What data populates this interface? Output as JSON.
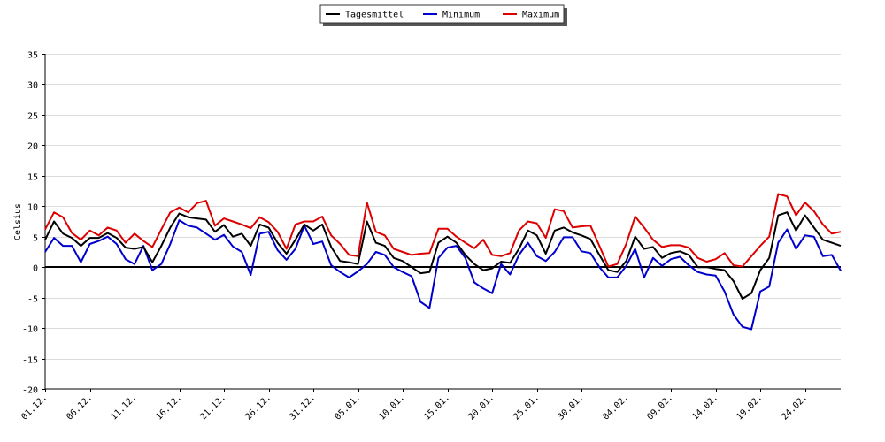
{
  "chart_data": {
    "type": "line",
    "ylabel": "Celsius",
    "xlabel": "",
    "ylim": [
      -20,
      35
    ],
    "yticks": [
      -20,
      -15,
      -10,
      -5,
      0,
      5,
      10,
      15,
      20,
      25,
      30,
      35
    ],
    "grid": "horizontal",
    "legend_position": "top-center",
    "xtick_labels": [
      "01.12.",
      "06.12.",
      "11.12.",
      "16.12.",
      "21.12.",
      "26.12.",
      "31.12.",
      "05.01.",
      "10.01.",
      "15.01.",
      "20.01.",
      "25.01.",
      "30.01.",
      "04.02.",
      "09.02.",
      "14.02.",
      "19.02.",
      "24.02."
    ],
    "x_start": "01.12.",
    "x_interval_days": 1,
    "series": [
      {
        "name": "Tagesmittel",
        "color": "#000000",
        "values": [
          4.5,
          7.5,
          5.5,
          4.8,
          3.5,
          4.8,
          4.8,
          5.6,
          4.8,
          3.2,
          3.0,
          3.3,
          0.8,
          3.5,
          6.5,
          8.8,
          8.2,
          8.0,
          7.8,
          5.8,
          6.9,
          5.0,
          5.5,
          3.5,
          7.0,
          6.5,
          4.0,
          2.2,
          4.5,
          7.0,
          6.0,
          7.0,
          3.3,
          1.0,
          0.8,
          0.5,
          7.5,
          4.0,
          3.5,
          1.5,
          1.0,
          0.0,
          -1.0,
          -0.8,
          4.0,
          5.0,
          4.0,
          2.0,
          0.5,
          -0.5,
          -0.2,
          0.9,
          0.7,
          3.0,
          6.0,
          5.2,
          2.2,
          6.0,
          6.5,
          5.7,
          5.2,
          4.6,
          2.0,
          -0.5,
          -0.8,
          1.0,
          5.0,
          3.0,
          3.3,
          1.5,
          2.3,
          2.6,
          2.0,
          0.0,
          0.0,
          -0.3,
          -0.5,
          -2.3,
          -5.2,
          -4.3,
          -0.5,
          1.5,
          8.5,
          9.0,
          6.0,
          8.5,
          6.5,
          4.5,
          4.0,
          3.5
        ]
      },
      {
        "name": "Minimum",
        "color": "#0000cc",
        "values": [
          2.5,
          4.8,
          3.5,
          3.5,
          0.8,
          3.8,
          4.3,
          5.0,
          3.8,
          1.3,
          0.5,
          3.5,
          -0.5,
          0.5,
          3.8,
          7.7,
          6.8,
          6.5,
          5.5,
          4.5,
          5.3,
          3.4,
          2.5,
          -1.3,
          5.5,
          5.8,
          2.8,
          1.2,
          3.0,
          6.8,
          3.8,
          4.2,
          0.3,
          -0.8,
          -1.7,
          -0.7,
          0.5,
          2.5,
          2.0,
          0.0,
          -0.8,
          -1.5,
          -5.7,
          -6.7,
          1.5,
          3.2,
          3.5,
          1.5,
          -2.5,
          -3.5,
          -4.3,
          0.5,
          -1.2,
          2.0,
          4.0,
          1.8,
          1.0,
          2.5,
          4.9,
          4.9,
          2.6,
          2.3,
          0.0,
          -1.7,
          -1.7,
          0.2,
          3.0,
          -1.7,
          1.5,
          0.2,
          1.3,
          1.7,
          0.3,
          -0.8,
          -1.2,
          -1.4,
          -4.0,
          -7.8,
          -9.8,
          -10.2,
          -4.0,
          -3.2,
          4.0,
          6.2,
          3.0,
          5.2,
          5.0,
          1.8,
          2.0,
          -0.6
        ]
      },
      {
        "name": "Maximum",
        "color": "#dd0000",
        "values": [
          6.2,
          9.0,
          8.2,
          5.6,
          4.5,
          6.0,
          5.2,
          6.5,
          6.0,
          4.0,
          5.5,
          4.3,
          3.3,
          6.2,
          9.0,
          9.8,
          9.0,
          10.5,
          10.9,
          6.8,
          8.0,
          7.5,
          7.0,
          6.4,
          8.2,
          7.4,
          5.8,
          3.0,
          7.0,
          7.5,
          7.5,
          8.3,
          5.2,
          3.8,
          2.0,
          1.8,
          10.6,
          5.8,
          5.2,
          3.0,
          2.5,
          2.0,
          2.2,
          2.3,
          6.3,
          6.3,
          5.0,
          4.0,
          3.1,
          4.5,
          2.0,
          1.8,
          2.3,
          6.0,
          7.5,
          7.2,
          4.8,
          9.5,
          9.2,
          6.5,
          6.7,
          6.8,
          3.5,
          0.1,
          0.5,
          3.8,
          8.3,
          6.5,
          4.5,
          3.3,
          3.6,
          3.6,
          3.2,
          1.5,
          0.9,
          1.3,
          2.3,
          0.3,
          0.1,
          1.8,
          3.5,
          5.0,
          12.0,
          11.6,
          8.5,
          10.6,
          9.2,
          7.0,
          5.5,
          5.8
        ]
      }
    ]
  }
}
